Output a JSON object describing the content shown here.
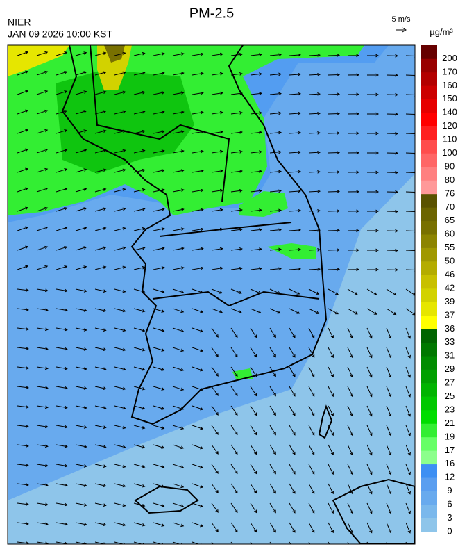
{
  "header": {
    "title": "PM-2.5",
    "agency": "NIER",
    "timestamp": "JAN 09 2026 10:00 KST",
    "wind_reference": "5 m/s"
  },
  "colorbar": {
    "unit": "µg/m³",
    "levels": [
      0,
      3,
      6,
      9,
      12,
      16,
      17,
      19,
      21,
      23,
      25,
      27,
      29,
      31,
      33,
      36,
      37,
      39,
      42,
      46,
      50,
      55,
      60,
      65,
      70,
      76,
      80,
      90,
      100,
      110,
      120,
      140,
      150,
      160,
      170,
      200
    ],
    "colors": [
      "#8ec5ea",
      "#7ab8ec",
      "#68aaee",
      "#5a9ef0",
      "#3d8ff3",
      "#8cff8c",
      "#66ff66",
      "#33ee33",
      "#00dd00",
      "#00c800",
      "#00b400",
      "#00a000",
      "#008c00",
      "#007800",
      "#006400",
      "#ffff00",
      "#e6e600",
      "#d2d200",
      "#c8c000",
      "#b4ac00",
      "#a09800",
      "#8c8400",
      "#787000",
      "#6c6400",
      "#5a5200",
      "#ff9999",
      "#ff8080",
      "#ff6666",
      "#ff4d4d",
      "#ff2020",
      "#ff0000",
      "#e60000",
      "#cc0000",
      "#b30000",
      "#990000",
      "#660000"
    ]
  }
}
